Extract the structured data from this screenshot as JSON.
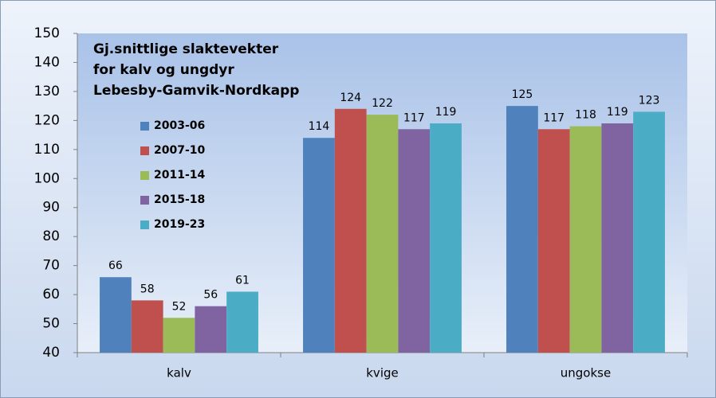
{
  "chart_data": {
    "type": "bar",
    "title": [
      "Gj.snittlige slaktevekter",
      "for kalv og ungdyr",
      "Lebesby-Gamvik-Nordkapp"
    ],
    "categories": [
      "kalv",
      "kvige",
      "ungokse"
    ],
    "series": [
      {
        "name": "2003-06",
        "color": "#4f81bd",
        "values": [
          66,
          114,
          125
        ]
      },
      {
        "name": "2007-10",
        "color": "#c0504d",
        "values": [
          58,
          124,
          117
        ]
      },
      {
        "name": "2011-14",
        "color": "#9bbb59",
        "values": [
          52,
          122,
          118
        ]
      },
      {
        "name": "2015-18",
        "color": "#8064a2",
        "values": [
          56,
          117,
          119
        ]
      },
      {
        "name": "2019-23",
        "color": "#4bacc6",
        "values": [
          61,
          119,
          123
        ]
      }
    ],
    "ylim": [
      40,
      150
    ],
    "yticks": [
      40,
      50,
      60,
      70,
      80,
      90,
      100,
      110,
      120,
      130,
      140,
      150
    ],
    "grid": false,
    "legend": "upper left"
  }
}
